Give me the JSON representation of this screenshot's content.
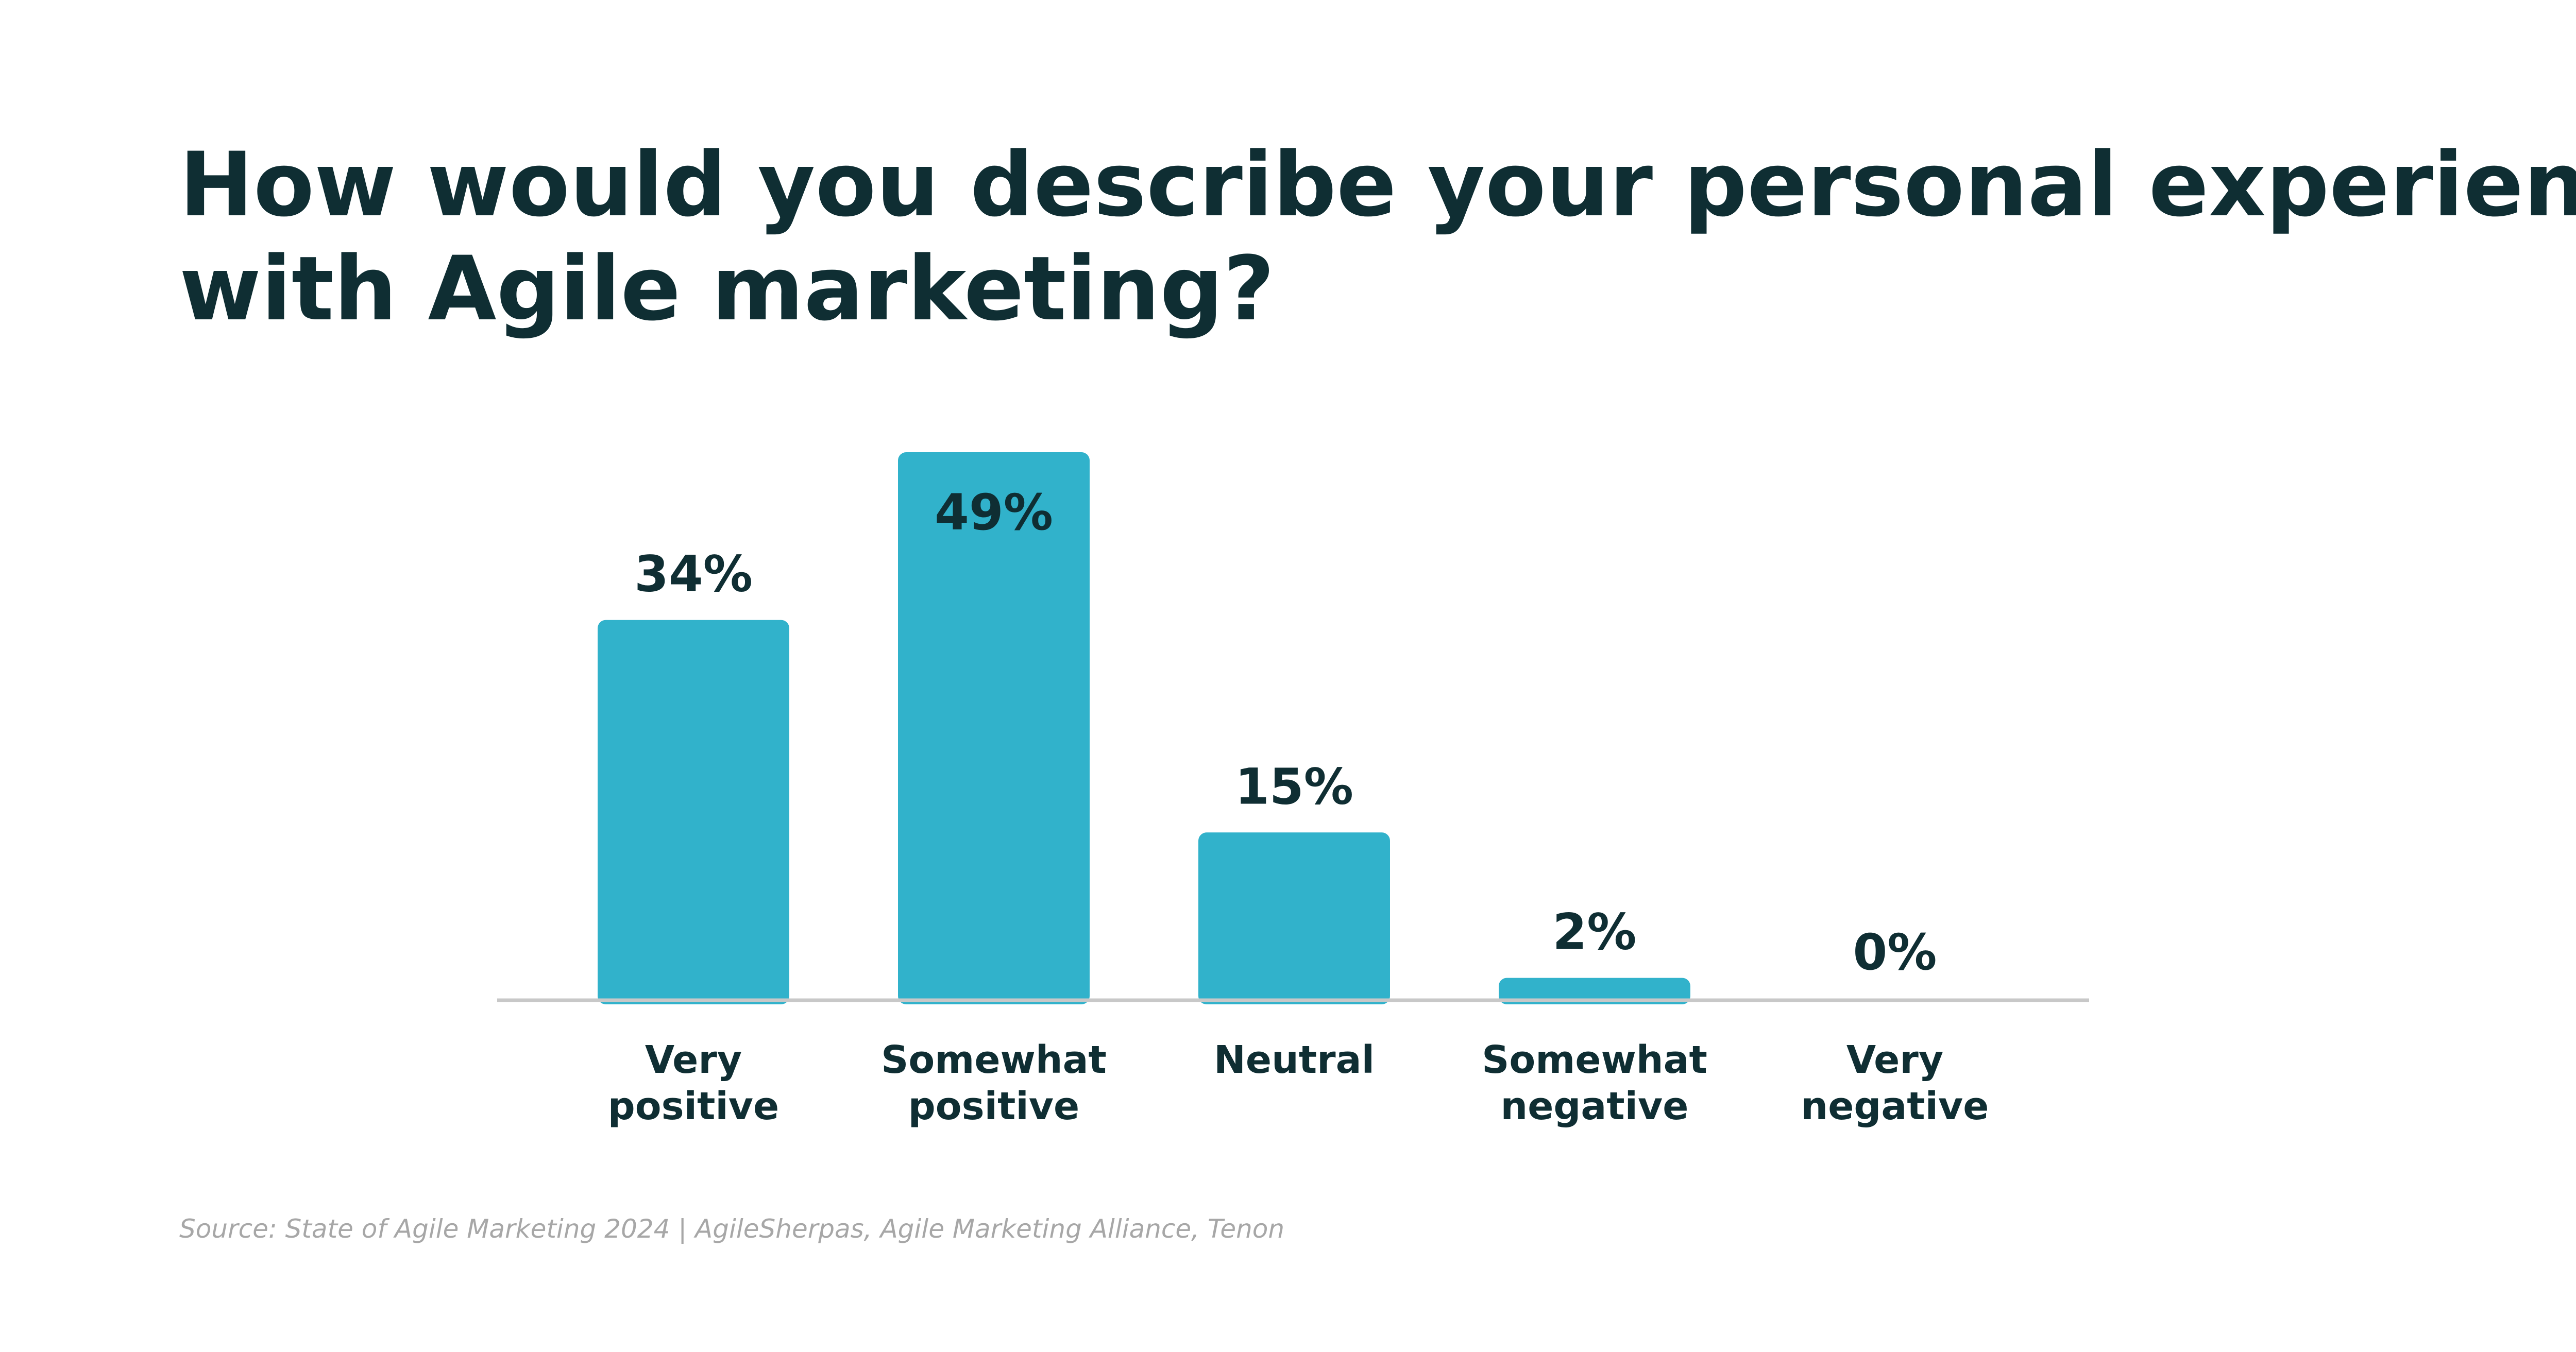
{
  "colors": {
    "bar": "#31b2cb",
    "text": "#0f2e33",
    "baseline": "#c8c8c8",
    "source": "#a7a7a7",
    "background": "#ffffff"
  },
  "chart_data": {
    "type": "bar",
    "title_lines": [
      "How would you describe your personal experience",
      "with Agile marketing?"
    ],
    "categories": [
      [
        "Very",
        "positive"
      ],
      [
        "Somewhat",
        "positive"
      ],
      [
        "Neutral"
      ],
      [
        "Somewhat",
        "negative"
      ],
      [
        "Very",
        "negative"
      ]
    ],
    "values": [
      34,
      49,
      15,
      2,
      0
    ],
    "value_labels": [
      "34%",
      "49%",
      "15%",
      "2%",
      "0%"
    ],
    "ylim": [
      0,
      49
    ],
    "grid": false,
    "source": "Source: State of Agile Marketing 2024 | AgileSherpas, Agile Marketing Alliance, Tenon"
  }
}
